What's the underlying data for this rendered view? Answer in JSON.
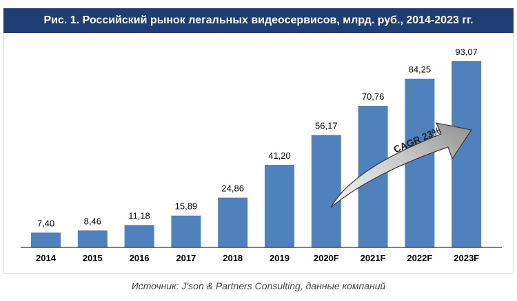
{
  "chart_data": {
    "type": "bar",
    "title": "Рис. 1. Российский рынок легальных видеосервисов, млрд. руб., 2014-2023 гг.",
    "categories": [
      "2014",
      "2015",
      "2016",
      "2017",
      "2018",
      "2019",
      "2020F",
      "2021F",
      "2022F",
      "2023F"
    ],
    "values": [
      7.4,
      8.46,
      11.18,
      15.89,
      24.86,
      41.2,
      56.17,
      70.76,
      84.25,
      93.07
    ],
    "value_labels": [
      "7,40",
      "8,46",
      "11,18",
      "15,89",
      "24,86",
      "41,20",
      "56,17",
      "70,76",
      "84,25",
      "93,07"
    ],
    "ylim": [
      0,
      93.07
    ],
    "grid": false,
    "bar_color": "#4f81bd",
    "annotation": "CAGR 23%"
  },
  "source": "Источник: J'son & Partners Consulting, данные компаний",
  "colors": {
    "title_bg": "#1f3e73",
    "arrow_fill_light": "#f2f2f2",
    "arrow_fill_dark": "#9a9a9a"
  }
}
